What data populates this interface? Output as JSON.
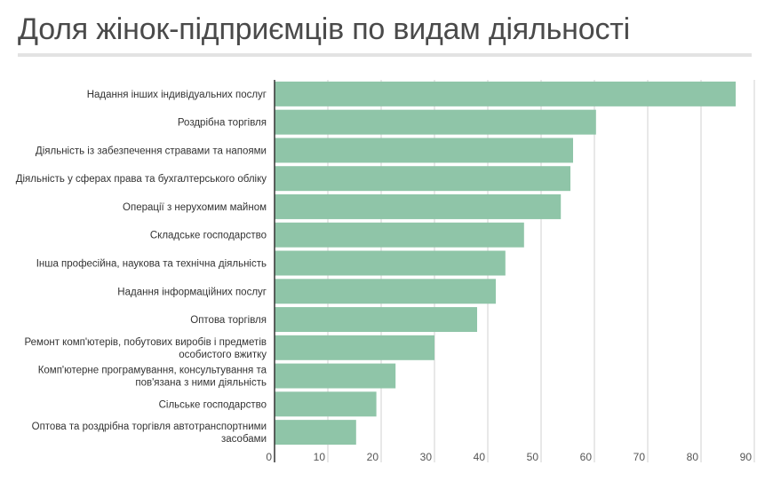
{
  "chart_data": {
    "type": "bar",
    "orientation": "horizontal",
    "title": "Доля жінок-підприємців по видам діяльності",
    "xlabel": "",
    "ylabel": "",
    "xlim": [
      0,
      90
    ],
    "xticks": [
      "0",
      "10",
      "20",
      "30",
      "40",
      "50",
      "60",
      "70",
      "80",
      "90"
    ],
    "grid": true,
    "bar_color": "#8fc5a8",
    "categories": [
      [
        "Надання інших індивідуальних послуг"
      ],
      [
        "Роздрібна торгівля"
      ],
      [
        "Діяльність із забезпечення стравами та напоями"
      ],
      [
        "Діяльність у сферах права та бухгалтерського обліку"
      ],
      [
        "Операції з нерухомим майном"
      ],
      [
        "Складське господарство"
      ],
      [
        "Інша професійна, наукова та технічна діяльність"
      ],
      [
        "Надання інформаційних послуг"
      ],
      [
        "Оптова торгівля"
      ],
      [
        "Ремонт комп'ютерів, побутових виробів і предметів",
        "особистого вжитку"
      ],
      [
        "Комп'ютерне програмування, консультування та",
        "пов'язана з ними діяльність"
      ],
      [
        "Сільське господарство"
      ],
      [
        "Оптова та роздрібна торгівля автотранспортними",
        "засобами"
      ]
    ],
    "values": [
      86.5,
      60.3,
      56.0,
      55.5,
      53.7,
      46.8,
      43.3,
      41.5,
      38.0,
      30.0,
      22.7,
      19.1,
      15.3
    ]
  }
}
